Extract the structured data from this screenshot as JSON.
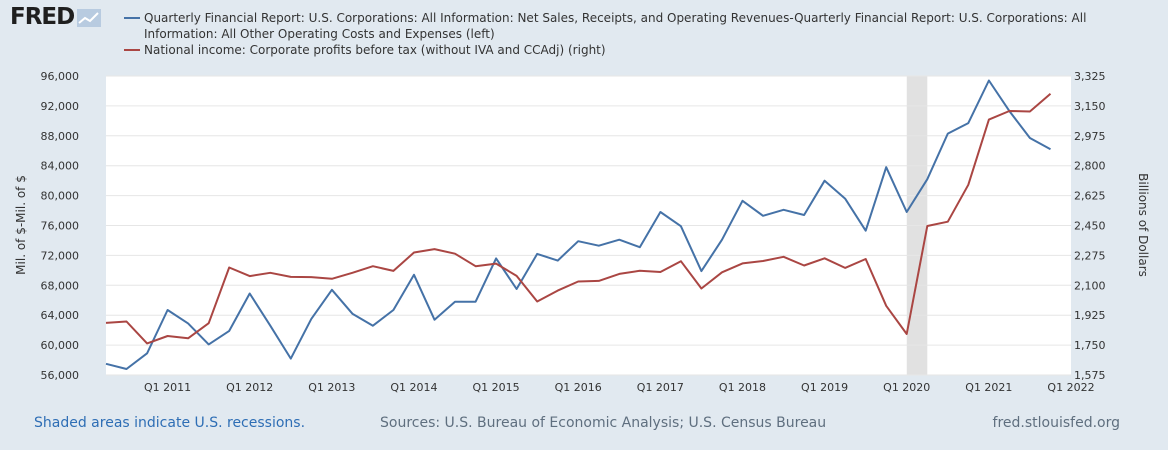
{
  "logo": {
    "text": "FRED"
  },
  "footer": {
    "recession_note": "Shaded areas indicate U.S. recessions.",
    "sources": "Sources: U.S. Bureau of Economic Analysis; U.S. Census Bureau",
    "site": "fred.stlouisfed.org"
  },
  "colors": {
    "background": "#e1e9f0",
    "plot_bg": "#ffffff",
    "series1": "#4572a7",
    "series2": "#aa4643",
    "recession": "#e1e1e1"
  },
  "chart_data": {
    "type": "line",
    "legend": [
      "Quarterly Financial Report: U.S. Corporations: All Information: Net Sales, Receipts, and Operating Revenues-Quarterly Financial Report: U.S. Corporations: All Information: All Other Operating Costs and Expenses (left)",
      "National income: Corporate profits before tax (without IVA and CCAdj) (right)"
    ],
    "ylabel_left": "Mil. of $-Mil. of $",
    "ylabel_right": "Billions of Dollars",
    "ylim_left": [
      56000,
      96000
    ],
    "ylim_right": [
      1575,
      3325
    ],
    "yticks_left": [
      "56,000",
      "60,000",
      "64,000",
      "68,000",
      "72,000",
      "76,000",
      "80,000",
      "84,000",
      "88,000",
      "92,000",
      "96,000"
    ],
    "yticks_right": [
      "1,575",
      "1,750",
      "1,925",
      "2,100",
      "2,275",
      "2,450",
      "2,625",
      "2,800",
      "2,975",
      "3,150",
      "3,325"
    ],
    "xticks": [
      "Q1 2011",
      "Q1 2012",
      "Q1 2013",
      "Q1 2014",
      "Q1 2015",
      "Q1 2016",
      "Q1 2017",
      "Q1 2018",
      "Q1 2019",
      "Q1 2020",
      "Q1 2021",
      "Q1 2022"
    ],
    "x": [
      "2010 Q2",
      "2010 Q3",
      "2010 Q4",
      "2011 Q1",
      "2011 Q2",
      "2011 Q3",
      "2011 Q4",
      "2012 Q1",
      "2012 Q2",
      "2012 Q3",
      "2012 Q4",
      "2013 Q1",
      "2013 Q2",
      "2013 Q3",
      "2013 Q4",
      "2014 Q1",
      "2014 Q2",
      "2014 Q3",
      "2014 Q4",
      "2015 Q1",
      "2015 Q2",
      "2015 Q3",
      "2015 Q4",
      "2016 Q1",
      "2016 Q2",
      "2016 Q3",
      "2016 Q4",
      "2017 Q1",
      "2017 Q2",
      "2017 Q3",
      "2017 Q4",
      "2018 Q1",
      "2018 Q2",
      "2018 Q3",
      "2018 Q4",
      "2019 Q1",
      "2019 Q2",
      "2019 Q3",
      "2019 Q4",
      "2020 Q1",
      "2020 Q2",
      "2020 Q3",
      "2020 Q4",
      "2021 Q1",
      "2021 Q2",
      "2021 Q3",
      "2021 Q4",
      "2022 Q1"
    ],
    "series": [
      {
        "name": "Quarterly Financial Report: U.S. Corporations: All Information: Net Sales, Receipts, and Operating Revenues-Quarterly Financial Report: U.S. Corporations: All Information: All Other Operating Costs and Expenses (left)",
        "axis": "left",
        "values": [
          57500,
          56800,
          58900,
          64700,
          62900,
          60100,
          61900,
          66900,
          62600,
          58200,
          63500,
          67400,
          64200,
          62600,
          64700,
          69400,
          63400,
          65800,
          65800,
          71600,
          67500,
          72200,
          71300,
          73900,
          73300,
          74100,
          73100,
          77800,
          75900,
          69900,
          74100,
          79300,
          77300,
          78100,
          77400,
          82000,
          79600,
          75300,
          83800,
          77800,
          82200,
          88300,
          89700,
          95400,
          91300,
          87700,
          86200,
          null
        ]
      },
      {
        "name": "National income: Corporate profits before tax (without IVA and CCAdj) (right)",
        "axis": "right",
        "values": [
          1880,
          1888,
          1760,
          1803,
          1790,
          1878,
          2204,
          2154,
          2173,
          2149,
          2148,
          2138,
          2173,
          2212,
          2184,
          2292,
          2312,
          2285,
          2212,
          2227,
          2155,
          2005,
          2069,
          2122,
          2126,
          2167,
          2185,
          2178,
          2241,
          2081,
          2176,
          2228,
          2242,
          2267,
          2216,
          2258,
          2202,
          2254,
          1980,
          1815,
          2447,
          2472,
          2688,
          3070,
          3120,
          3117,
          3221,
          null
        ]
      }
    ],
    "recessions": [
      [
        "2020 Q1",
        "2020 Q2"
      ]
    ]
  }
}
